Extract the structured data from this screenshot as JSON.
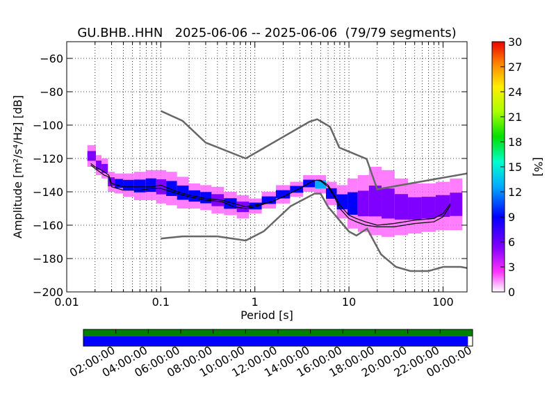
{
  "chart_data": {
    "type": "heatmap",
    "title": "GU.BHB..HHN   2025-06-06 -- 2025-06-06  (79/79 segments)",
    "xlabel": "Period [s]",
    "ylabel": "Amplitude [m²/s⁴/Hz] [dB]",
    "xscale": "log",
    "xlim": [
      0.01,
      180
    ],
    "ylim": [
      -200,
      -50
    ],
    "x_ticks": [
      "0.01",
      "0.1",
      "1",
      "10",
      "100"
    ],
    "y_ticks": [
      "−200",
      "−180",
      "−160",
      "−140",
      "−120",
      "−100",
      "−80",
      "−60"
    ],
    "y_tick_values": [
      -200,
      -180,
      -160,
      -140,
      -120,
      -100,
      -80,
      -60
    ],
    "grid": true,
    "colorbar": {
      "label": "[%]",
      "range": [
        0,
        30
      ],
      "ticks": [
        "0",
        "3",
        "6",
        "9",
        "12",
        "15",
        "18",
        "21",
        "24",
        "27",
        "30"
      ]
    },
    "series": [
      {
        "role": "new-high-noise-model",
        "color": "#666666",
        "x": [
          0.1,
          0.17,
          0.3,
          0.8,
          3.8,
          4.6,
          6.3,
          7.9,
          15.4,
          20,
          180
        ],
        "y": [
          -91.5,
          -97.4,
          -110.5,
          -120,
          -98,
          -96.5,
          -101,
          -113.5,
          -120.3,
          -138.5,
          -129
        ]
      },
      {
        "role": "new-low-noise-model",
        "color": "#666666",
        "x": [
          0.1,
          0.17,
          0.4,
          0.8,
          1.24,
          2.4,
          4.3,
          5,
          6,
          10,
          12,
          15.6,
          21.9,
          31.6,
          45,
          70,
          101,
          154,
          180
        ],
        "y": [
          -168,
          -166.7,
          -166.7,
          -169.2,
          -163.7,
          -148.6,
          -141.1,
          -141.1,
          -149,
          -163.8,
          -166.2,
          -162.1,
          -177.5,
          -185,
          -187.5,
          -187.5,
          -185,
          -185,
          -185.7
        ]
      },
      {
        "role": "mode",
        "color": "#000000",
        "x": [
          0.018,
          0.02,
          0.025,
          0.028,
          0.03,
          0.04,
          0.06,
          0.08,
          0.1,
          0.15,
          0.2,
          0.3,
          0.45,
          0.6,
          0.8,
          1,
          1.5,
          2,
          3,
          4,
          4.5,
          5,
          6,
          7,
          8,
          10,
          12,
          15,
          20,
          30,
          50,
          80,
          100,
          120
        ],
        "y": [
          -124,
          -126,
          -130,
          -131,
          -137,
          -139,
          -139,
          -138,
          -138,
          -141,
          -143,
          -145,
          -146,
          -149,
          -150,
          -149,
          -146,
          -143,
          -138,
          -134,
          -133,
          -133.5,
          -137,
          -143,
          -150,
          -156,
          -158,
          -160,
          -161,
          -161,
          -159,
          -158,
          -155,
          -148
        ]
      },
      {
        "role": "mean",
        "color": "#000000",
        "x": [
          0.018,
          0.02,
          0.025,
          0.028,
          0.03,
          0.04,
          0.06,
          0.08,
          0.1,
          0.15,
          0.2,
          0.3,
          0.45,
          0.6,
          0.8,
          1,
          1.5,
          2,
          3,
          4,
          4.5,
          5,
          6,
          7,
          8,
          10,
          12,
          15,
          20,
          30,
          50,
          80,
          100,
          120
        ],
        "y": [
          -123,
          -125,
          -128,
          -130,
          -135,
          -137,
          -137,
          -137,
          -136,
          -140,
          -142,
          -144,
          -145,
          -147,
          -149,
          -148,
          -146,
          -143,
          -138,
          -134,
          -133,
          -133,
          -136,
          -142,
          -148,
          -154,
          -156,
          -158,
          -160,
          -159,
          -157,
          -156,
          -153,
          -147
        ]
      }
    ],
    "heatmap_cells": [
      {
        "x": 0.019,
        "ymin": -125,
        "ymax": -112,
        "pct": 2
      },
      {
        "x": 0.022,
        "ymin": -130,
        "ymax": -118,
        "pct": 3
      },
      {
        "x": 0.025,
        "ymin": -132,
        "ymax": -120,
        "pct": 3
      },
      {
        "x": 0.03,
        "ymin": -140,
        "ymax": -128,
        "pct": 4
      },
      {
        "x": 0.035,
        "ymin": -141,
        "ymax": -129,
        "pct": 6
      },
      {
        "x": 0.045,
        "ymin": -143,
        "ymax": -129,
        "pct": 7
      },
      {
        "x": 0.06,
        "ymin": -145,
        "ymax": -128,
        "pct": 7
      },
      {
        "x": 0.08,
        "ymin": -145,
        "ymax": -127,
        "pct": 6
      },
      {
        "x": 0.1,
        "ymin": -147,
        "ymax": -127,
        "pct": 4
      },
      {
        "x": 0.13,
        "ymin": -148,
        "ymax": -128,
        "pct": 5
      },
      {
        "x": 0.17,
        "ymin": -150,
        "ymax": -131,
        "pct": 5
      },
      {
        "x": 0.23,
        "ymin": -150,
        "ymax": -135,
        "pct": 5
      },
      {
        "x": 0.3,
        "ymin": -151,
        "ymax": -136,
        "pct": 5
      },
      {
        "x": 0.4,
        "ymin": -153,
        "ymax": -137,
        "pct": 4
      },
      {
        "x": 0.55,
        "ymin": -154,
        "ymax": -140,
        "pct": 5
      },
      {
        "x": 0.75,
        "ymin": -156,
        "ymax": -142,
        "pct": 4
      },
      {
        "x": 1,
        "ymin": -153,
        "ymax": -144,
        "pct": 5
      },
      {
        "x": 1.4,
        "ymin": -150,
        "ymax": -140,
        "pct": 5
      },
      {
        "x": 2,
        "ymin": -147,
        "ymax": -136,
        "pct": 5
      },
      {
        "x": 2.8,
        "ymin": -143,
        "ymax": -134,
        "pct": 6
      },
      {
        "x": 3.8,
        "ymin": -140,
        "ymax": -130,
        "pct": 7
      },
      {
        "x": 5,
        "ymin": -141,
        "ymax": -130,
        "pct": 8
      },
      {
        "x": 6.5,
        "ymin": -148,
        "ymax": -134,
        "pct": 7
      },
      {
        "x": 8.5,
        "ymin": -156,
        "ymax": -136,
        "pct": 6
      },
      {
        "x": 11,
        "ymin": -162,
        "ymax": -132,
        "pct": 5
      },
      {
        "x": 14,
        "ymin": -164,
        "ymax": -130,
        "pct": 4
      },
      {
        "x": 19,
        "ymin": -166,
        "ymax": -125,
        "pct": 3
      },
      {
        "x": 26,
        "ymin": -167,
        "ymax": -127,
        "pct": 3
      },
      {
        "x": 36,
        "ymin": -166,
        "ymax": -132,
        "pct": 3
      },
      {
        "x": 50,
        "ymin": -165,
        "ymax": -135,
        "pct": 3
      },
      {
        "x": 70,
        "ymin": -164,
        "ymax": -135,
        "pct": 3
      },
      {
        "x": 100,
        "ymin": -163,
        "ymax": -134,
        "pct": 3
      },
      {
        "x": 140,
        "ymin": -163,
        "ymax": -132,
        "pct": 3
      }
    ],
    "timeline": {
      "labels": [
        "02:00:00",
        "04:00:00",
        "06:00:00",
        "08:00:00",
        "10:00:00",
        "12:00:00",
        "14:00:00",
        "16:00:00",
        "18:00:00",
        "20:00:00",
        "22:00:00",
        "00:00:00"
      ],
      "data_coverage_fraction": 1.0,
      "used_coverage_fraction": 0.988,
      "data_color": "#008000",
      "used_color": "#0000ff"
    }
  }
}
